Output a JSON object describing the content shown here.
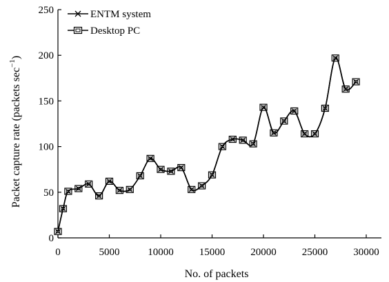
{
  "chart_data": {
    "type": "line",
    "xlabel": "No. of packets",
    "ylabel": "Packet capture rate (packets sec",
    "ylabel_superscript": "−1",
    "ylabel_close": ")",
    "xlim": [
      0,
      30000
    ],
    "ylim": [
      0,
      250
    ],
    "x_ticks": [
      0,
      5000,
      10000,
      15000,
      20000,
      25000,
      30000
    ],
    "y_ticks": [
      0,
      50,
      100,
      150,
      200,
      250
    ],
    "grid": false,
    "legend_position": "top-left",
    "x": [
      0,
      500,
      1000,
      2000,
      3000,
      4000,
      5000,
      6000,
      7000,
      8000,
      9000,
      10000,
      11000,
      12000,
      13000,
      14000,
      15000,
      16000,
      17000,
      18000,
      19000,
      20000,
      21000,
      22000,
      23000,
      24000,
      25000,
      26000,
      27000,
      28000,
      29000
    ],
    "series": [
      {
        "name": "ENTM system",
        "marker": "x",
        "values": [
          7,
          32,
          51,
          54,
          59,
          46,
          62,
          52,
          53,
          68,
          87,
          75,
          73,
          77,
          53,
          57,
          69,
          100,
          108,
          107,
          103,
          143,
          115,
          128,
          139,
          114,
          114,
          142,
          197,
          163,
          171
        ]
      },
      {
        "name": "Desktop PC",
        "marker": "square",
        "values": [
          7,
          32,
          51,
          54,
          59,
          46,
          62,
          52,
          53,
          68,
          87,
          75,
          73,
          77,
          53,
          57,
          69,
          100,
          108,
          107,
          103,
          143,
          115,
          128,
          139,
          114,
          114,
          142,
          197,
          163,
          171
        ]
      }
    ]
  }
}
